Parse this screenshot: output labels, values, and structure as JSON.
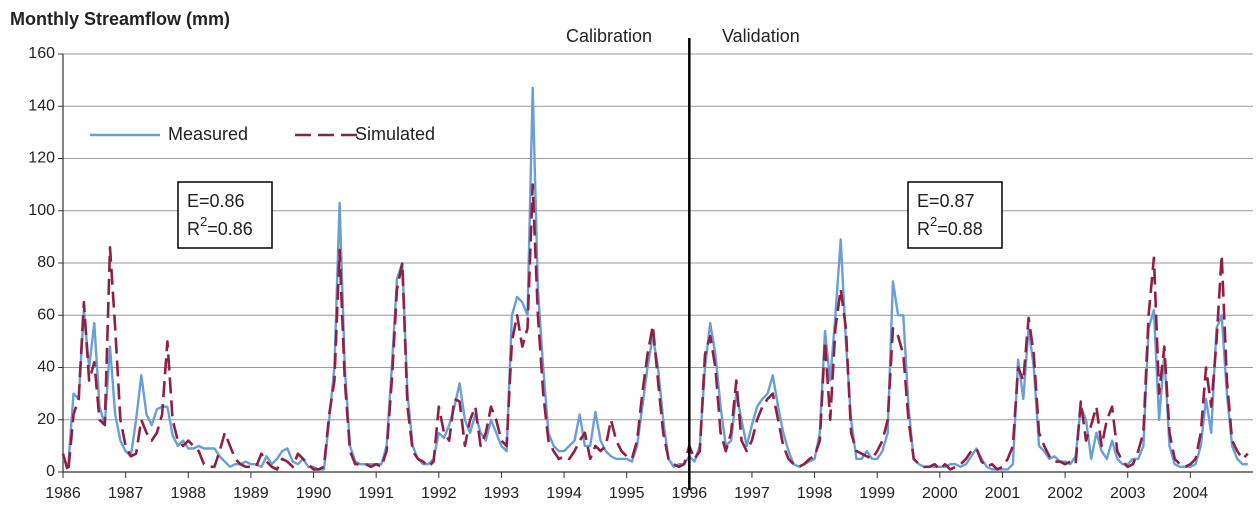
{
  "chart_data": {
    "type": "line",
    "title": "Monthly Streamflow (mm)",
    "annotations": {
      "calibration": "Calibration",
      "validation": "Validation"
    },
    "divider_x": 1996,
    "stats": [
      {
        "e": "E=0.86",
        "r": "R",
        "sup": "2",
        "rest": "=0.86"
      },
      {
        "e": "E=0.87",
        "r": "R",
        "sup": "2",
        "rest": "=0.88"
      }
    ],
    "xlim": [
      1986,
      2005
    ],
    "xticks": [
      1986,
      1987,
      1988,
      1989,
      1990,
      1991,
      1992,
      1993,
      1994,
      1995,
      1996,
      1997,
      1998,
      1999,
      2000,
      2001,
      2002,
      2003,
      2004
    ],
    "ylim": [
      0,
      160
    ],
    "yticks": [
      0,
      20,
      40,
      60,
      80,
      100,
      120,
      140,
      160
    ],
    "grid": true,
    "legend": "upper left",
    "x": [
      1986.0,
      1986.083,
      1986.167,
      1986.25,
      1986.333,
      1986.417,
      1986.5,
      1986.583,
      1986.667,
      1986.75,
      1986.833,
      1986.917,
      1987.0,
      1987.083,
      1987.167,
      1987.25,
      1987.333,
      1987.417,
      1987.5,
      1987.583,
      1987.667,
      1987.75,
      1987.833,
      1987.917,
      1988.0,
      1988.083,
      1988.167,
      1988.25,
      1988.333,
      1988.417,
      1988.5,
      1988.583,
      1988.667,
      1988.75,
      1988.833,
      1988.917,
      1989.0,
      1989.083,
      1989.167,
      1989.25,
      1989.333,
      1989.417,
      1989.5,
      1989.583,
      1989.667,
      1989.75,
      1989.833,
      1989.917,
      1990.0,
      1990.083,
      1990.167,
      1990.25,
      1990.333,
      1990.417,
      1990.5,
      1990.583,
      1990.667,
      1990.75,
      1990.833,
      1990.917,
      1991.0,
      1991.083,
      1991.167,
      1991.25,
      1991.333,
      1991.417,
      1991.5,
      1991.583,
      1991.667,
      1991.75,
      1991.833,
      1991.917,
      1992.0,
      1992.083,
      1992.167,
      1992.25,
      1992.333,
      1992.417,
      1992.5,
      1992.583,
      1992.667,
      1992.75,
      1992.833,
      1992.917,
      1993.0,
      1993.083,
      1993.167,
      1993.25,
      1993.333,
      1993.417,
      1993.5,
      1993.583,
      1993.667,
      1993.75,
      1993.833,
      1993.917,
      1994.0,
      1994.083,
      1994.167,
      1994.25,
      1994.333,
      1994.417,
      1994.5,
      1994.583,
      1994.667,
      1994.75,
      1994.833,
      1994.917,
      1995.0,
      1995.083,
      1995.167,
      1995.25,
      1995.333,
      1995.417,
      1995.5,
      1995.583,
      1995.667,
      1995.75,
      1995.833,
      1995.917,
      1996.0,
      1996.083,
      1996.167,
      1996.25,
      1996.333,
      1996.417,
      1996.5,
      1996.583,
      1996.667,
      1996.75,
      1996.833,
      1996.917,
      1997.0,
      1997.083,
      1997.167,
      1997.25,
      1997.333,
      1997.417,
      1997.5,
      1997.583,
      1997.667,
      1997.75,
      1997.833,
      1997.917,
      1998.0,
      1998.083,
      1998.167,
      1998.25,
      1998.333,
      1998.417,
      1998.5,
      1998.583,
      1998.667,
      1998.75,
      1998.833,
      1998.917,
      1999.0,
      1999.083,
      1999.167,
      1999.25,
      1999.333,
      1999.417,
      1999.5,
      1999.583,
      1999.667,
      1999.75,
      1999.833,
      1999.917,
      2000.0,
      2000.083,
      2000.167,
      2000.25,
      2000.333,
      2000.417,
      2000.5,
      2000.583,
      2000.667,
      2000.75,
      2000.833,
      2000.917,
      2001.0,
      2001.083,
      2001.167,
      2001.25,
      2001.333,
      2001.417,
      2001.5,
      2001.583,
      2001.667,
      2001.75,
      2001.833,
      2001.917,
      2002.0,
      2002.083,
      2002.167,
      2002.25,
      2002.333,
      2002.417,
      2002.5,
      2002.583,
      2002.667,
      2002.75,
      2002.833,
      2002.917,
      2003.0,
      2003.083,
      2003.167,
      2003.25,
      2003.333,
      2003.417,
      2003.5,
      2003.583,
      2003.667,
      2003.75,
      2003.833,
      2003.917,
      2004.0,
      2004.083,
      2004.167,
      2004.25,
      2004.333,
      2004.417,
      2004.5,
      2004.583,
      2004.667,
      2004.75,
      2004.833,
      2004.917
    ],
    "series": [
      {
        "name": "Measured",
        "color": "#6a9fd6",
        "dash": false,
        "values": [
          5,
          2,
          30,
          28,
          62,
          40,
          57,
          25,
          18,
          48,
          22,
          12,
          8,
          6,
          20,
          37,
          22,
          18,
          24,
          25,
          25,
          14,
          10,
          12,
          9,
          9,
          10,
          9,
          9,
          9,
          6,
          4,
          2,
          3,
          3,
          4,
          3,
          3,
          2,
          6,
          3,
          5,
          8,
          9,
          4,
          3,
          5,
          2,
          2,
          1,
          1,
          20,
          40,
          103,
          40,
          10,
          4,
          3,
          3,
          3,
          3,
          3,
          10,
          40,
          74,
          80,
          30,
          10,
          5,
          3,
          3,
          5,
          15,
          13,
          18,
          25,
          34,
          20,
          15,
          22,
          15,
          12,
          20,
          15,
          10,
          8,
          60,
          67,
          65,
          60,
          147,
          70,
          40,
          15,
          10,
          8,
          8,
          10,
          12,
          22,
          10,
          10,
          23,
          12,
          8,
          6,
          5,
          5,
          5,
          4,
          10,
          25,
          40,
          52,
          40,
          20,
          5,
          2,
          3,
          3,
          6,
          4,
          10,
          40,
          57,
          45,
          25,
          10,
          12,
          30,
          20,
          10,
          18,
          25,
          28,
          30,
          37,
          25,
          15,
          8,
          3,
          2,
          3,
          4,
          5,
          15,
          54,
          35,
          60,
          89,
          50,
          20,
          5,
          5,
          8,
          5,
          5,
          8,
          15,
          73,
          60,
          60,
          25,
          5,
          3,
          2,
          2,
          2,
          2,
          2,
          3,
          3,
          2,
          3,
          6,
          9,
          5,
          2,
          1,
          1,
          1,
          1,
          3,
          43,
          28,
          55,
          40,
          10,
          8,
          5,
          6,
          4,
          4,
          3,
          6,
          25,
          20,
          5,
          15,
          8,
          5,
          12,
          5,
          3,
          3,
          5,
          5,
          10,
          55,
          62,
          20,
          45,
          10,
          3,
          2,
          2,
          2,
          3,
          10,
          28,
          15,
          55,
          60,
          30,
          10,
          5,
          3,
          3
        ]
      },
      {
        "name": "Simulated",
        "color": "#8e1f45",
        "dash": true,
        "values": [
          7,
          0,
          22,
          28,
          65,
          35,
          42,
          20,
          18,
          86,
          55,
          20,
          10,
          6,
          7,
          20,
          15,
          12,
          15,
          22,
          50,
          20,
          12,
          10,
          12,
          10,
          8,
          3,
          2,
          2,
          8,
          15,
          10,
          5,
          3,
          2,
          2,
          2,
          7,
          4,
          2,
          1,
          5,
          4,
          2,
          7,
          5,
          3,
          1,
          1,
          2,
          22,
          35,
          85,
          35,
          8,
          3,
          3,
          3,
          2,
          3,
          2,
          8,
          35,
          70,
          80,
          25,
          8,
          5,
          4,
          2,
          4,
          25,
          15,
          12,
          28,
          27,
          10,
          20,
          25,
          10,
          15,
          25,
          20,
          12,
          10,
          50,
          60,
          48,
          55,
          110,
          60,
          30,
          12,
          8,
          5,
          6,
          5,
          8,
          12,
          15,
          5,
          10,
          8,
          10,
          20,
          12,
          8,
          6,
          5,
          12,
          30,
          45,
          56,
          35,
          15,
          5,
          3,
          2,
          3,
          10,
          5,
          8,
          45,
          52,
          40,
          15,
          8,
          15,
          35,
          12,
          8,
          12,
          20,
          25,
          28,
          30,
          20,
          10,
          5,
          3,
          2,
          3,
          5,
          6,
          12,
          50,
          20,
          55,
          70,
          55,
          15,
          8,
          7,
          6,
          5,
          8,
          12,
          20,
          55,
          52,
          45,
          20,
          5,
          3,
          2,
          2,
          3,
          1,
          3,
          1,
          2,
          3,
          5,
          8,
          9,
          4,
          2,
          3,
          1,
          2,
          5,
          10,
          40,
          35,
          59,
          45,
          15,
          10,
          6,
          4,
          4,
          3,
          4,
          3,
          27,
          12,
          18,
          25,
          10,
          20,
          25,
          8,
          4,
          2,
          3,
          8,
          15,
          60,
          82,
          30,
          48,
          15,
          5,
          3,
          2,
          3,
          5,
          15,
          40,
          25,
          50,
          83,
          35,
          12,
          8,
          5,
          7
        ]
      }
    ]
  }
}
